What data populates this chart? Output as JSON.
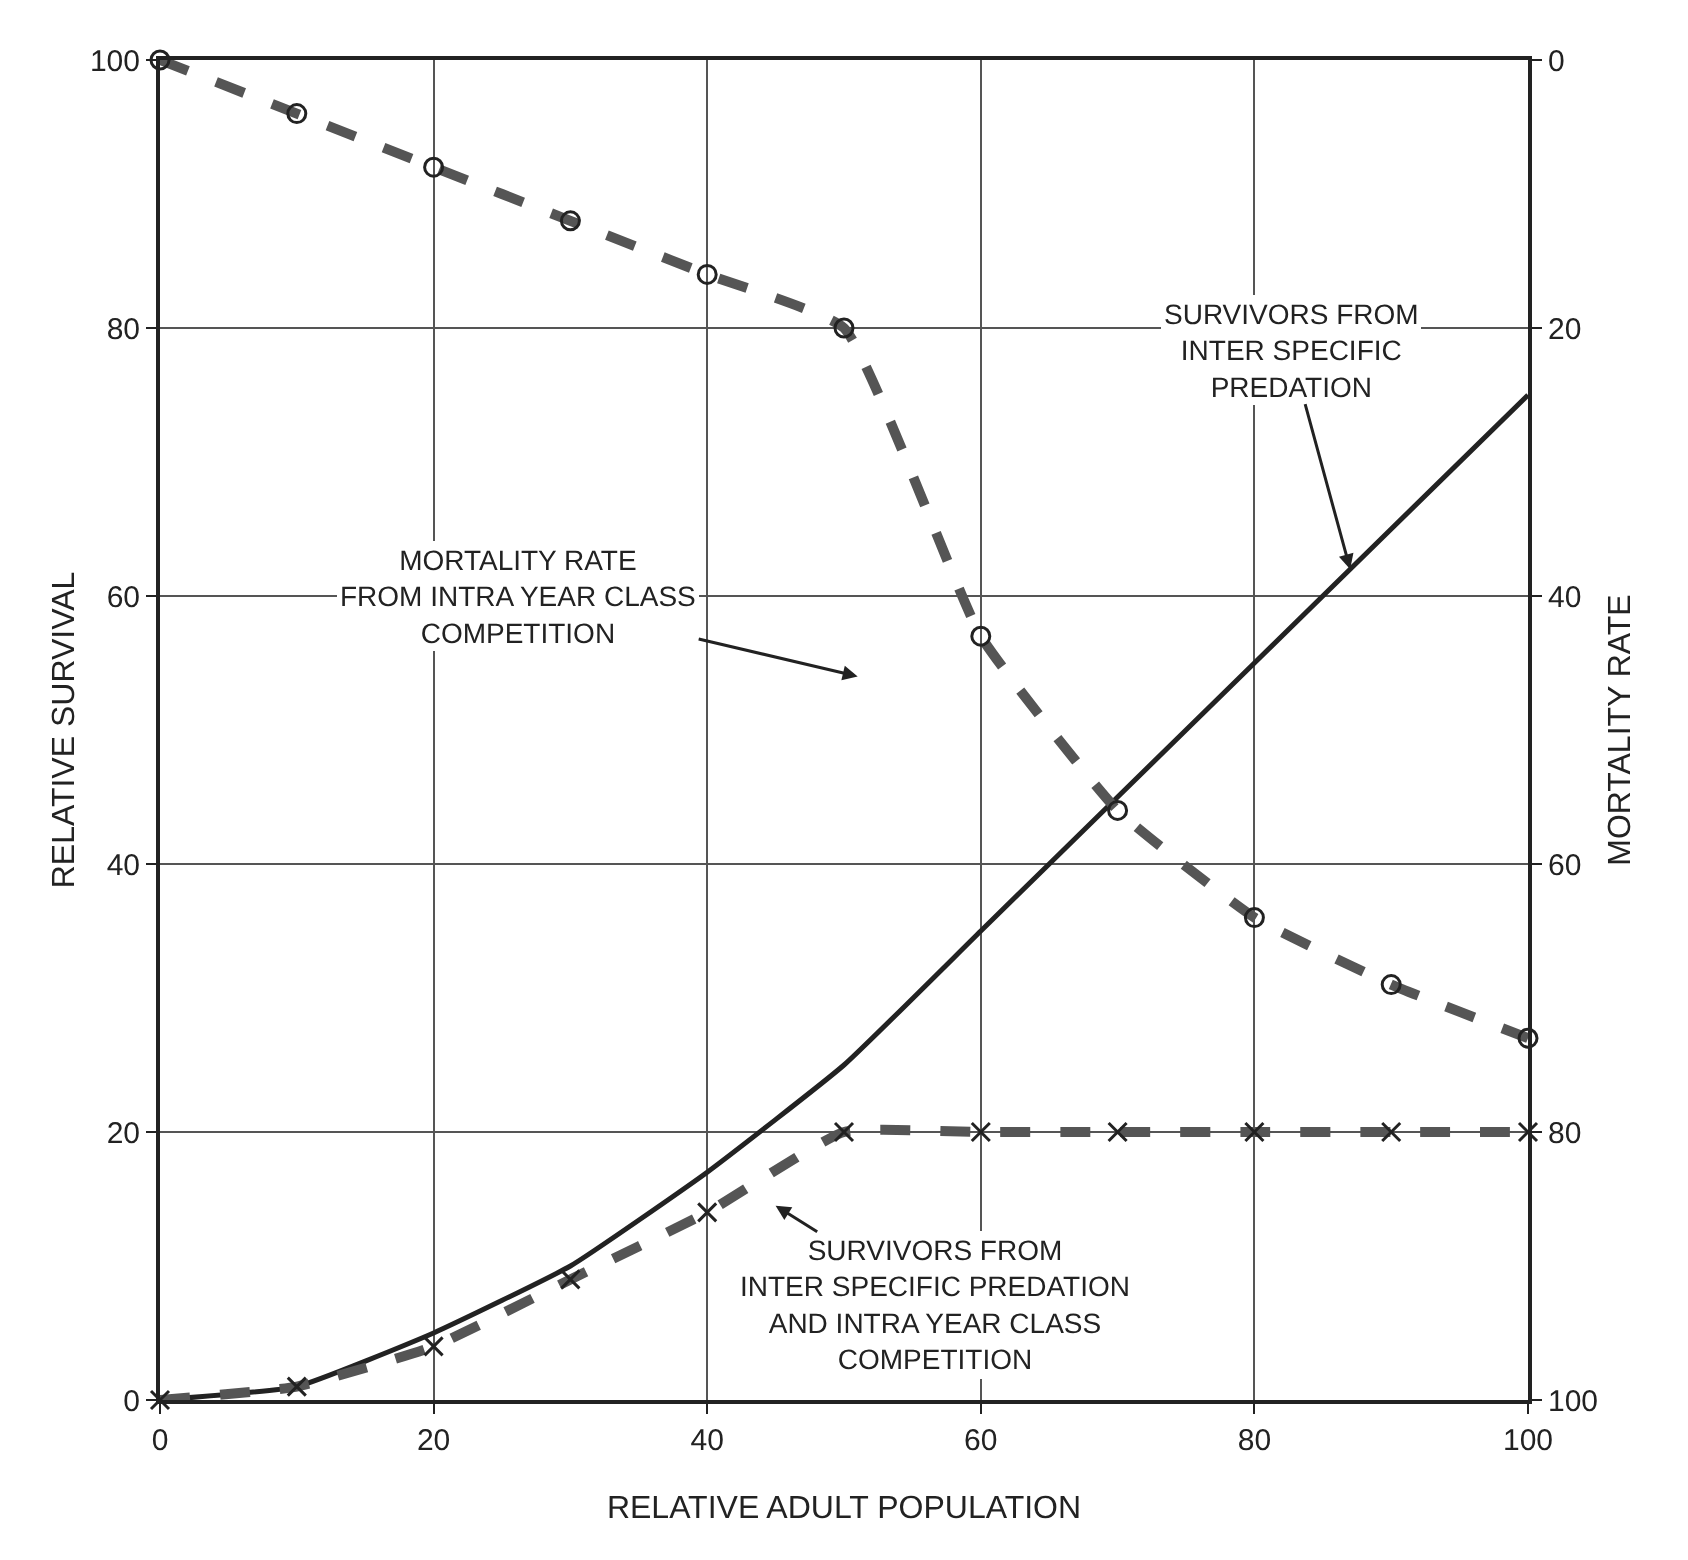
{
  "chart_data": {
    "type": "line",
    "xlabel": "RELATIVE ADULT POPULATION",
    "ylabel": "RELATIVE SURVIVAL",
    "y2label": "MORTALITY RATE",
    "x": [
      0,
      10,
      20,
      30,
      40,
      50,
      60,
      70,
      80,
      90,
      100
    ],
    "series": [
      {
        "color": "#555555",
        "values": [
          0,
          4,
          8,
          12,
          16,
          20,
          43,
          56,
          64,
          69,
          73
        ],
        "axis": "y2",
        "marker": "circle",
        "line_style": "dashed"
      },
      {
        "color": "#222222",
        "values": [
          0,
          1,
          5,
          10,
          17,
          25,
          35,
          45,
          55,
          65,
          75
        ],
        "marker": "none",
        "line_style": "solid"
      },
      {
        "color": "#555555",
        "values": [
          0,
          1,
          4,
          9,
          14,
          20,
          20,
          20,
          20,
          20,
          20
        ],
        "marker": "cross",
        "line_style": "dashed"
      }
    ],
    "xlim": [
      0,
      100
    ],
    "xticks": [
      0,
      20,
      40,
      60,
      80,
      100
    ],
    "ylim": [
      0,
      100
    ],
    "yticks": [
      0,
      20,
      40,
      60,
      80,
      100
    ],
    "y2lim": [
      100,
      0
    ],
    "y2ticks": [
      0,
      20,
      40,
      60,
      80,
      100
    ],
    "grid": true,
    "annotations": [
      {
        "text": "SURVIVORS FROM\nINTER SPECIFIC\nPREDATION",
        "x": 87,
        "y": 62
      },
      "MORTALITY RATE\nFROM INTRA YEAR CLASS\nCOMPETITION",
      "SURVIVORS FROM\nINTER SPECIFIC PREDATION\nAND INTRA YEAR CLASS\nCOMPETITION"
    ]
  }
}
